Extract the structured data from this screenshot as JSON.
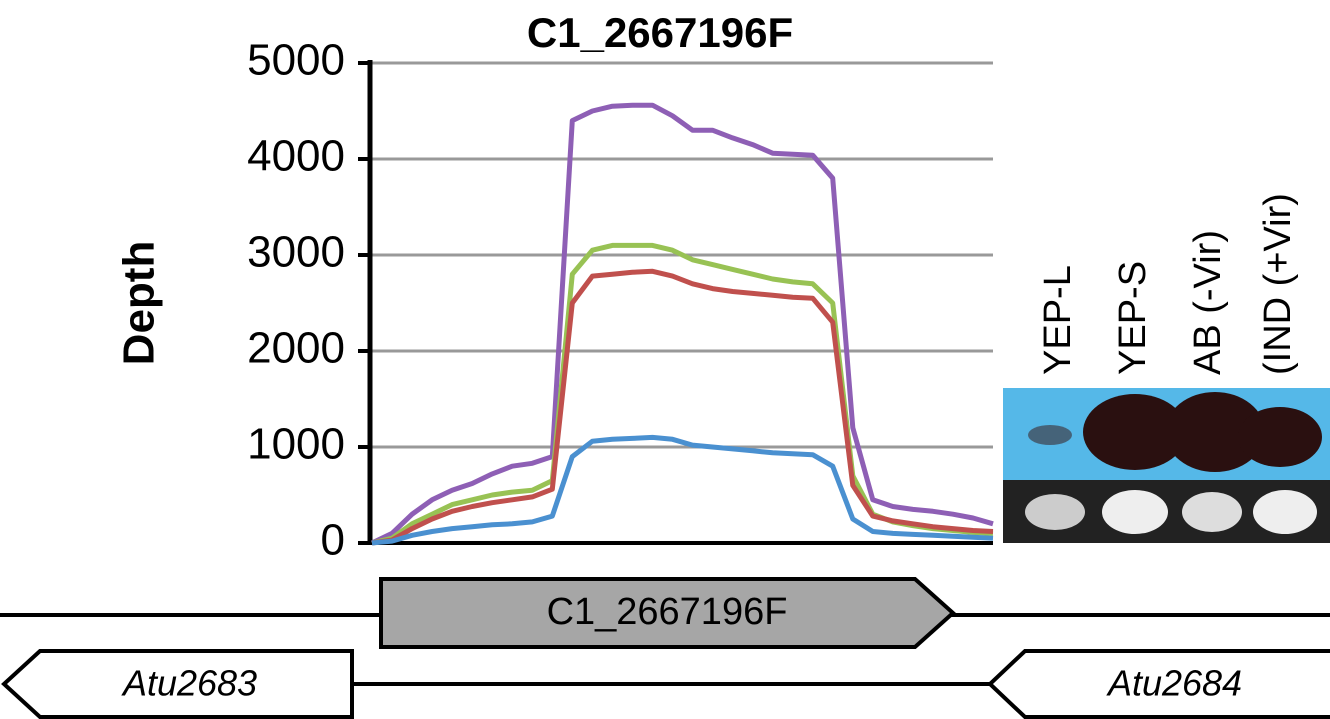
{
  "chart_data": {
    "type": "line",
    "title": "C1_2667196F",
    "y_label": "Depth",
    "categories": [
      null,
      null,
      null,
      null,
      null,
      null,
      null,
      null,
      null,
      null,
      null,
      null,
      null,
      null,
      null,
      null,
      null,
      null,
      null,
      null,
      null,
      null,
      null,
      null,
      null,
      null,
      null,
      null,
      null,
      null,
      null,
      null
    ],
    "series": [
      {
        "color": "#8e5fb5",
        "values": [
          0,
          100,
          300,
          450,
          550,
          620,
          720,
          800,
          830,
          900,
          4400,
          4500,
          4550,
          4560,
          4560,
          4450,
          4300,
          4300,
          4220,
          4150,
          4060,
          4050,
          4040,
          3800,
          1200,
          450,
          380,
          350,
          330,
          300,
          260,
          200
        ]
      },
      {
        "color": "#98c254",
        "values": [
          0,
          50,
          200,
          300,
          400,
          450,
          500,
          530,
          550,
          650,
          2800,
          3050,
          3100,
          3100,
          3100,
          3050,
          2950,
          2900,
          2850,
          2800,
          2750,
          2720,
          2700,
          2500,
          700,
          300,
          220,
          180,
          150,
          130,
          110,
          100
        ]
      },
      {
        "color": "#c0504d",
        "values": [
          0,
          30,
          150,
          250,
          330,
          380,
          420,
          450,
          480,
          560,
          2500,
          2780,
          2800,
          2820,
          2830,
          2780,
          2700,
          2650,
          2620,
          2600,
          2580,
          2560,
          2550,
          2300,
          600,
          280,
          230,
          200,
          170,
          150,
          130,
          120
        ]
      },
      {
        "color": "#4a90d0",
        "values": [
          0,
          20,
          80,
          120,
          150,
          170,
          190,
          200,
          220,
          280,
          900,
          1060,
          1080,
          1090,
          1100,
          1080,
          1020,
          1000,
          980,
          960,
          940,
          930,
          920,
          800,
          250,
          120,
          100,
          90,
          80,
          70,
          60,
          50
        ]
      }
    ],
    "ylim": [
      0,
      5000
    ],
    "yticks": [
      0,
      1000,
      2000,
      3000,
      4000,
      5000
    ],
    "grid": true
  },
  "gel": {
    "lanes": [
      "YEP-L",
      "YEP-S",
      "AB (-Vir)",
      "(IND (+Vir)"
    ]
  },
  "genes": {
    "main": "C1_2667196F",
    "left": "Atu2683",
    "right": "Atu2684"
  }
}
